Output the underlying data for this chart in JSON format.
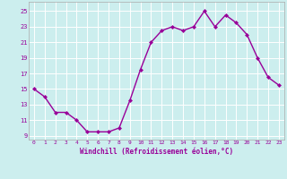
{
  "x": [
    0,
    1,
    2,
    3,
    4,
    5,
    6,
    7,
    8,
    9,
    10,
    11,
    12,
    13,
    14,
    15,
    16,
    17,
    18,
    19,
    20,
    21,
    22,
    23
  ],
  "y": [
    15,
    14,
    12,
    12,
    11,
    9.5,
    9.5,
    9.5,
    10,
    13.5,
    17.5,
    21,
    22.5,
    23,
    22.5,
    23,
    25,
    23,
    24.5,
    23.5,
    22,
    19,
    16.5,
    15.5
  ],
  "line_color": "#990099",
  "marker": "D",
  "marker_size": 2.0,
  "linewidth": 1.0,
  "bg_color": "#cceeee",
  "grid_color": "#ffffff",
  "xlabel": "Windchill (Refroidissement éolien,°C)",
  "xlabel_color": "#990099",
  "tick_color": "#990099",
  "xlim": [
    -0.5,
    23.5
  ],
  "ylim": [
    8.5,
    26.2
  ],
  "yticks": [
    9,
    11,
    13,
    15,
    17,
    19,
    21,
    23,
    25
  ],
  "xticks": [
    0,
    1,
    2,
    3,
    4,
    5,
    6,
    7,
    8,
    9,
    10,
    11,
    12,
    13,
    14,
    15,
    16,
    17,
    18,
    19,
    20,
    21,
    22,
    23
  ]
}
